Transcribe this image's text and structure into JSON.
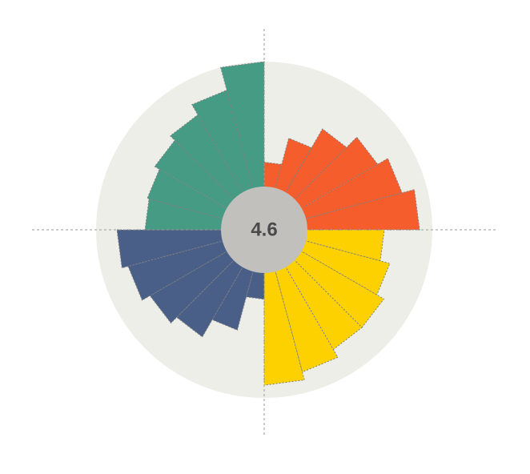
{
  "chart_data": {
    "type": "bar",
    "subtype": "radial",
    "center_label": "4.6",
    "grid": false,
    "legend": "none",
    "colors": {
      "background_disc": "#eeeee9",
      "center_circle": "#c1c0bd",
      "axis_lines": "#9a9a9a"
    },
    "scale": {
      "max": 10
    },
    "series": [
      {
        "color": "#f65d2d",
        "values": [
          1.35,
          2.85,
          4.05,
          4.85,
          5.5,
          6.2
        ]
      },
      {
        "color": "#fdd100",
        "values": [
          4.25,
          4.8,
          5.25,
          5.25,
          5.75,
          6.2
        ]
      },
      {
        "color": "#4a5f87",
        "values": [
          1.45,
          3.35,
          4.45,
          4.9,
          5.4,
          5.75
        ]
      },
      {
        "color": "#469b85",
        "values": [
          4.2,
          4.3,
          4.6,
          4.95,
          5.6,
          6.9
        ]
      }
    ]
  }
}
